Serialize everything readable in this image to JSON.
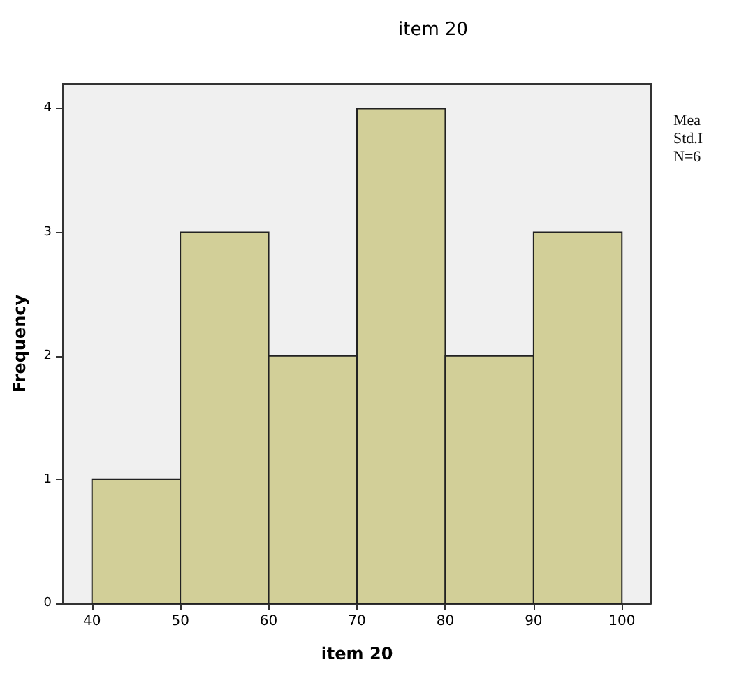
{
  "chart_data": {
    "type": "histogram",
    "title": "item 20",
    "xlabel": "item 20",
    "ylabel": "Frequency",
    "bins": [
      40,
      50,
      60,
      70,
      80,
      90,
      100
    ],
    "values": [
      1,
      3,
      2,
      4,
      2,
      3
    ],
    "color": "#d2cf98",
    "xlim": [
      36.7,
      103.3
    ],
    "xticks": [
      40,
      50,
      60,
      70,
      80,
      90,
      100
    ],
    "ylim": [
      0,
      4.2
    ],
    "yticks": [
      0,
      1,
      2,
      3,
      4
    ],
    "grid": false,
    "annotations": [
      "Mea",
      "Std.I",
      "N=6"
    ]
  }
}
